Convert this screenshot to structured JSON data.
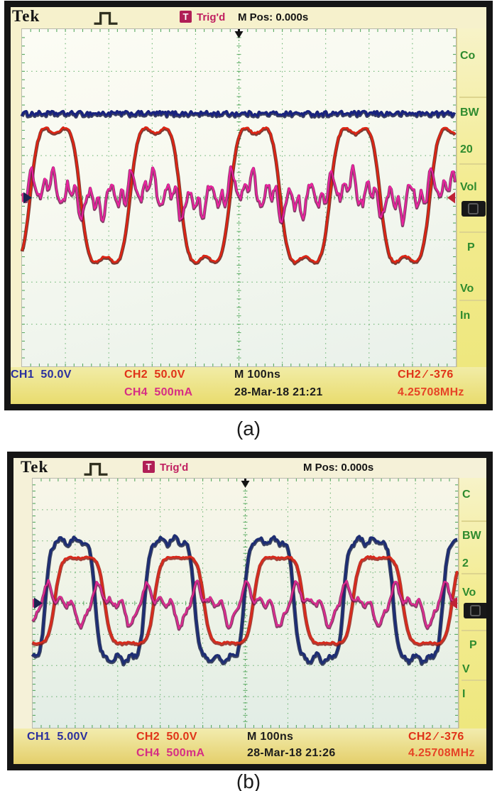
{
  "colors": {
    "grid": "#5aab62",
    "ch1_blue": "#2a2f9e",
    "ch2_red": "#e03318",
    "ch4_magenta": "#d62e84",
    "freq_red": "#e64426",
    "trig_magenta": "#c02060",
    "badge_bg": "#b01e56",
    "menu_green": "#2e8b2e",
    "marker_dark": "#1a2350",
    "marker_level": "#bf2336",
    "trigger_arrow": "#141414"
  },
  "panels": [
    {
      "header": {
        "logo": "Tek",
        "trig_badge": "T",
        "trig_status": "Trig'd",
        "m_pos": "M Pos: 0.000s"
      },
      "menu": {
        "items": [
          "Co",
          "BW",
          "20",
          "Vol",
          "P",
          "Vo",
          "In"
        ]
      },
      "status": {
        "ch1": "CH1  50.0V",
        "ch2": "CH2  50.0V",
        "ch4": "CH4  500mA",
        "timebase": "M 100ns",
        "datetime": "28-Mar-18 21:21",
        "trigger": "CH2 ∕ -376",
        "frequency": "4.25708MHz"
      },
      "caption": "(a)"
    },
    {
      "header": {
        "logo": "Tek",
        "trig_badge": "T",
        "trig_status": "Trig'd",
        "m_pos": "M Pos: 0.000s"
      },
      "menu": {
        "items": [
          "C",
          "BW",
          "2",
          "Vo",
          "P",
          "V",
          "I"
        ]
      },
      "status": {
        "ch1": "CH1  5.00V",
        "ch2": "CH2  50.0V",
        "ch4": "CH4  500mA",
        "timebase": "M 100ns",
        "datetime": "28-Mar-18 21:26",
        "trigger": "CH2 ∕ -376",
        "frequency": "4.25708MHz"
      },
      "caption": "(b)"
    }
  ],
  "chart_data": [
    {
      "type": "line",
      "title": "Oscilloscope capture (a)",
      "timebase": "100 ns/div",
      "measured_frequency": "4.25708MHz",
      "trigger": {
        "source": "CH2",
        "slope": "rising",
        "level": "-376",
        "m_pos": "0.000s"
      },
      "divisions": {
        "x": 10,
        "y": 8
      },
      "series": [
        {
          "name": "CH1",
          "scale": "50.0 V/div",
          "shape": "flat",
          "offset_div": 2.0,
          "amplitude_div": 1,
          "noise": 0.06,
          "cycles": 4.34,
          "phase": 0,
          "color": "#18227f",
          "shadow": "#0b1240",
          "width": 3
        },
        {
          "name": "CH2",
          "scale": "50.0 V/div",
          "shape": "clipped_sine",
          "offset_div": 0.07,
          "amplitude_div": 1.62,
          "clip": 2.1,
          "dimple": 0.1,
          "noise": 0.03,
          "cycles": 4.34,
          "phase": -0.52,
          "color": "#e02413",
          "shadow": "#5d0d06",
          "width": 2.6
        },
        {
          "name": "CH4",
          "scale": "500 mA/div",
          "shape": "ripple_a",
          "offset_div": 0.08,
          "amplitude_div": 0.62,
          "noise": 0.28,
          "cycles": 4.34,
          "phase": -0.52,
          "color": "#ee21a2",
          "shadow": "#6d1048",
          "width": 2
        }
      ]
    },
    {
      "type": "line",
      "title": "Oscilloscope capture (b)",
      "timebase": "100 ns/div",
      "measured_frequency": "4.25708MHz",
      "trigger": {
        "source": "CH2",
        "slope": "rising",
        "level": "-376",
        "m_pos": "0.000s"
      },
      "divisions": {
        "x": 10,
        "y": 8
      },
      "series": [
        {
          "name": "CH1",
          "scale": "5.00 V/div",
          "shape": "square",
          "offset_div": 0.12,
          "amplitude_div": 1.89,
          "clip": 3.4,
          "noise": 0.07,
          "cycles": 4.28,
          "phase": -0.81,
          "color": "#1d2d74",
          "shadow": "#101a40",
          "width": 3.2
        },
        {
          "name": "CH2",
          "scale": "50.0 V/div",
          "shape": "clipped_sine",
          "offset_div": 0.1,
          "amplitude_div": 1.4,
          "clip": 2.6,
          "dimple": 0.03,
          "noise": 0.04,
          "cycles": 4.28,
          "phase": -1.4,
          "color": "#d92a1c",
          "shadow": "#8c1812",
          "width": 2.8
        },
        {
          "name": "CH4",
          "scale": "500 mA/div",
          "shape": "ripple_b",
          "offset_div": -0.02,
          "amplitude_div": 0.8,
          "noise": 0.18,
          "cycles": 4.28,
          "phase": -0.81,
          "color": "#df2a92",
          "shadow": "#71134c",
          "width": 2.2
        }
      ]
    }
  ]
}
